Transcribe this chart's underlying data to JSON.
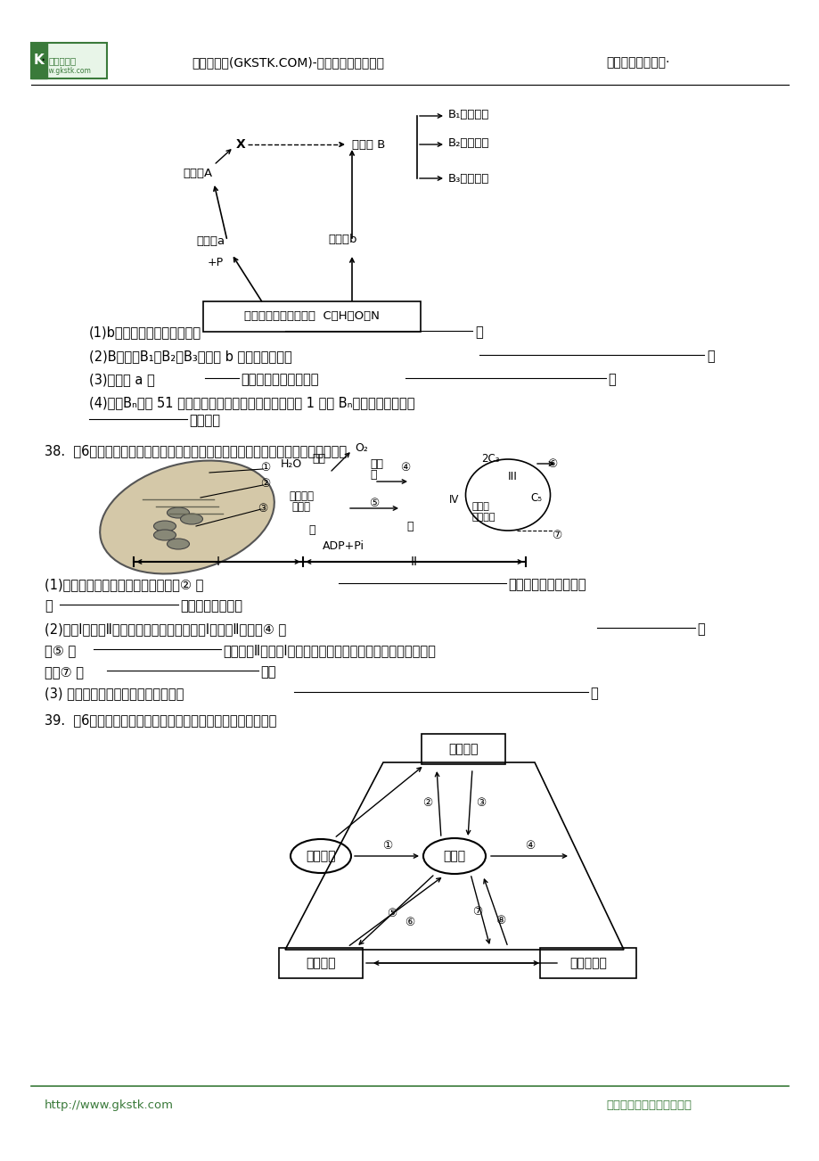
{
  "page_bg": "#ffffff",
  "header_text1": "高考试题库(GKSTK.COM)-国内最专业高考网站",
  "header_text2": "我的高考我做主！·",
  "footer_text1": "http://www.gkstk.com",
  "footer_text2": "考名牌大学，上高考试题库",
  "green_color": "#3a7a3a",
  "black_color": "#000000",
  "gray_color": "#888888",
  "line_color": "#333333"
}
